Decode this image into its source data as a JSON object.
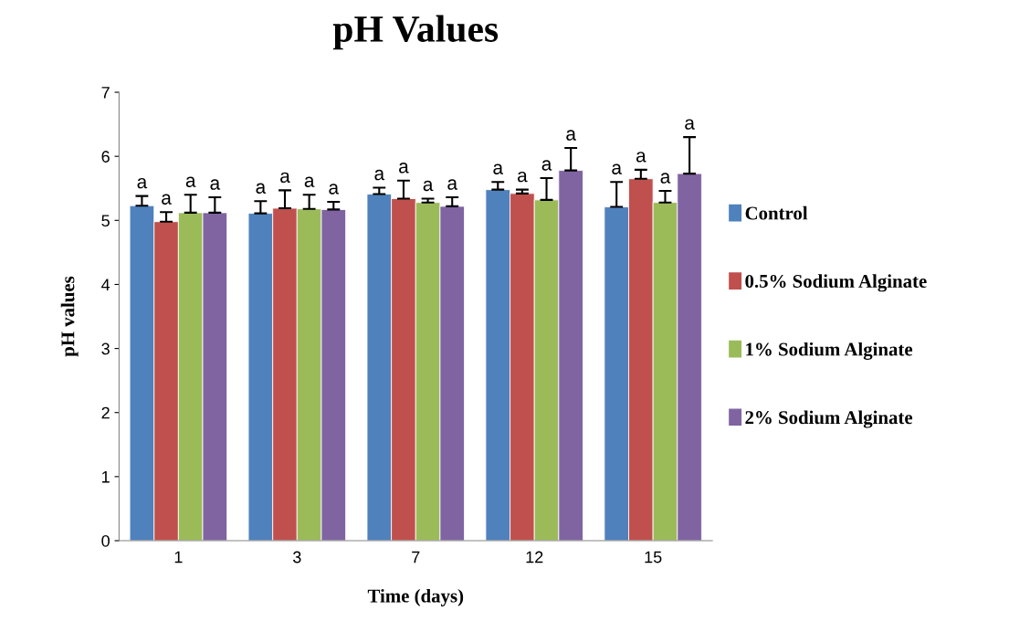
{
  "chart_data": {
    "type": "bar",
    "title": "pH Values",
    "xlabel": "Time (days)",
    "ylabel": "pH values",
    "categories": [
      "1",
      "3",
      "7",
      "12",
      "15"
    ],
    "series": [
      {
        "name": "Control",
        "color": "#4f81bd",
        "values": [
          5.23,
          5.11,
          5.41,
          5.48,
          5.21
        ],
        "errors": [
          0.15,
          0.19,
          0.1,
          0.12,
          0.39
        ],
        "value_labels": [
          "a",
          "a",
          "a",
          "a",
          "a"
        ]
      },
      {
        "name": "0.5% Sodium Alginate",
        "color": "#c0504d",
        "values": [
          4.98,
          5.19,
          5.34,
          5.42,
          5.65
        ],
        "errors": [
          0.15,
          0.28,
          0.28,
          0.06,
          0.14
        ],
        "value_labels": [
          "a",
          "a",
          "a",
          "a",
          "a"
        ]
      },
      {
        "name": "1% Sodium Alginate",
        "color": "#9bbb59",
        "values": [
          5.12,
          5.18,
          5.28,
          5.32,
          5.28
        ],
        "errors": [
          0.28,
          0.22,
          0.06,
          0.34,
          0.18
        ],
        "value_labels": [
          "a",
          "a",
          "a",
          "a",
          "a"
        ]
      },
      {
        "name": "2% Sodium Alginate",
        "color": "#8064a2",
        "values": [
          5.12,
          5.17,
          5.22,
          5.78,
          5.73
        ],
        "errors": [
          0.24,
          0.12,
          0.14,
          0.35,
          0.57
        ],
        "value_labels": [
          "a",
          "a",
          "a",
          "a",
          "a"
        ]
      }
    ],
    "ylim": [
      0,
      7
    ],
    "yticks": [
      0,
      1,
      2,
      3,
      4,
      5,
      6,
      7
    ],
    "grid": false,
    "legend": "right"
  }
}
